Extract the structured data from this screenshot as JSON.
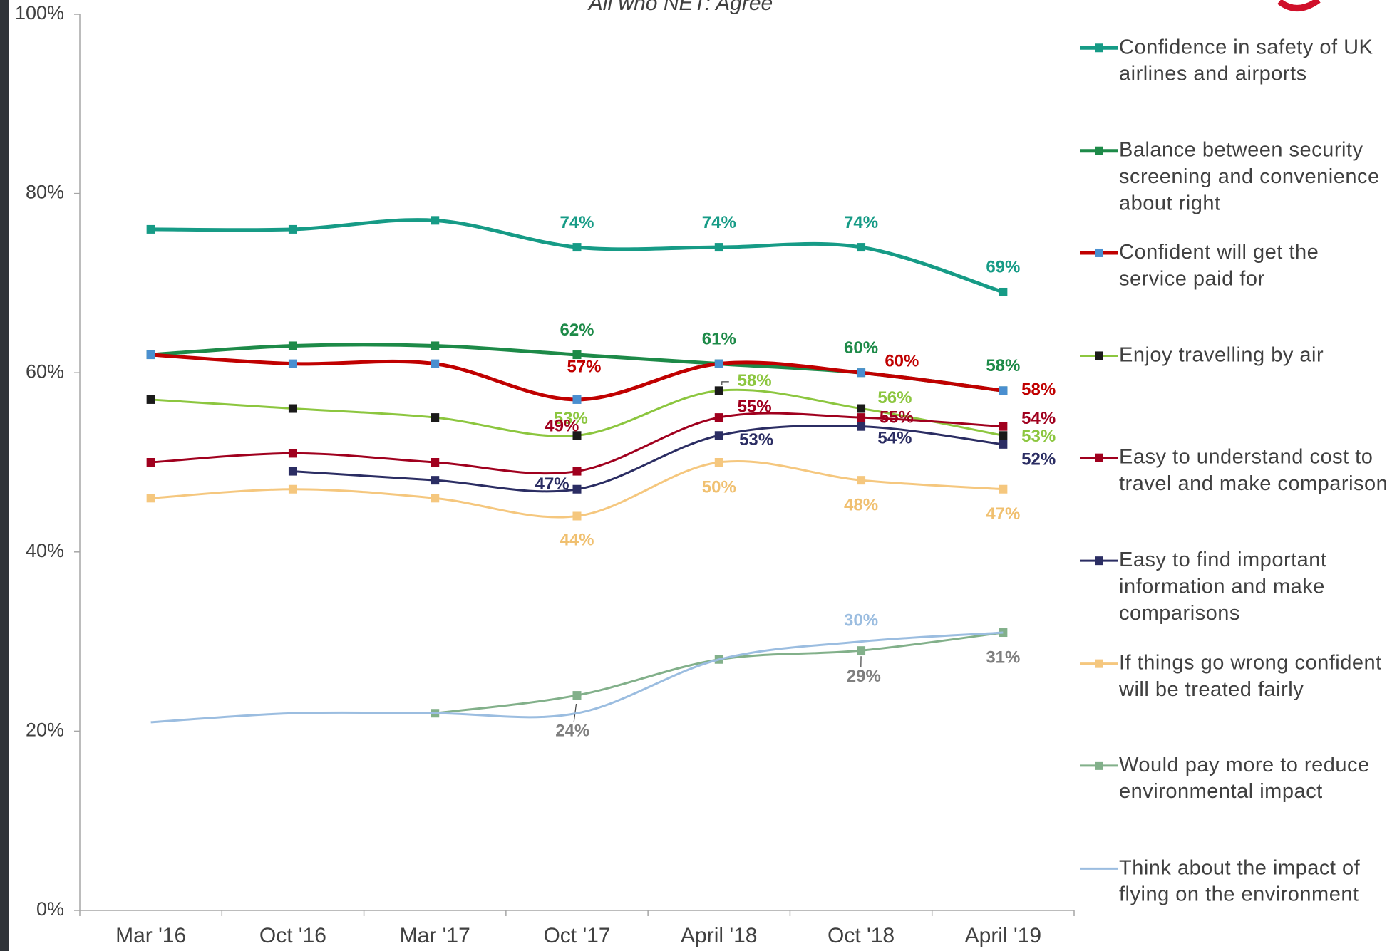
{
  "chart_data": {
    "type": "line",
    "subtitle": "All who NET: Agree",
    "categories": [
      "Mar '16",
      "Oct '16",
      "Mar '17",
      "Oct '17",
      "April '18",
      "Oct '18",
      "April '19"
    ],
    "ylim": [
      0,
      100
    ],
    "yticks": [
      {
        "value": 0,
        "label": "0%"
      },
      {
        "value": 20,
        "label": "20%"
      },
      {
        "value": 40,
        "label": "40%"
      },
      {
        "value": 60,
        "label": "60%"
      },
      {
        "value": 80,
        "label": "80%"
      },
      {
        "value": 100,
        "label": "100%"
      }
    ],
    "grid": false,
    "legend": "right",
    "series": [
      {
        "name": "Confidence in safety of UK airlines and airports",
        "color": "#169b86",
        "marker_color": "#169b86",
        "values": [
          76,
          76,
          77,
          74,
          74,
          74,
          69
        ],
        "value_labels": [
          null,
          null,
          null,
          "74%",
          "74%",
          "74%",
          "69%"
        ]
      },
      {
        "name": "Balance between security screening and convenience about right",
        "color": "#1d8a48",
        "marker_color": "#1d8a48",
        "values": [
          62,
          63,
          63,
          62,
          61,
          60,
          58
        ],
        "value_labels": [
          null,
          null,
          null,
          "62%",
          "61%",
          "60%",
          "58%"
        ]
      },
      {
        "name": "Confident will get the service paid for",
        "color": "#c00000",
        "marker_color": "#4a8fd0",
        "values": [
          62,
          61,
          61,
          57,
          61,
          60,
          58
        ],
        "value_labels": [
          null,
          null,
          null,
          "57%",
          null,
          "60%",
          "58%"
        ]
      },
      {
        "name": "Enjoy travelling by air",
        "color": "#8cc63f",
        "marker_color": "#1a1a1a",
        "values": [
          57,
          56,
          55,
          53,
          58,
          56,
          53
        ],
        "value_labels": [
          null,
          null,
          null,
          "53%",
          "58%",
          "56%",
          "53%"
        ]
      },
      {
        "name": "Easy to understand cost to travel and make comparison",
        "color": "#a0001e",
        "marker_color": "#a0001e",
        "values": [
          50,
          51,
          50,
          49,
          55,
          55,
          54
        ],
        "value_labels": [
          null,
          null,
          null,
          "49%",
          "55%",
          "55%",
          "54%"
        ]
      },
      {
        "name": "Easy to find important information and make comparisons",
        "color": "#2b2d63",
        "marker_color": "#2b2d63",
        "values": [
          null,
          49,
          48,
          47,
          53,
          54,
          52
        ],
        "value_labels": [
          null,
          null,
          null,
          "47%",
          "53%",
          "54%",
          "52%"
        ]
      },
      {
        "name": "If things go wrong confident will be treated fairly",
        "color": "#f5c77e",
        "marker_color": "#f5c77e",
        "values": [
          46,
          47,
          46,
          44,
          50,
          48,
          47
        ],
        "value_labels": [
          null,
          null,
          null,
          "44%",
          "50%",
          "48%",
          "47%"
        ]
      },
      {
        "name": "Would pay more to reduce environmental impact",
        "color": "#82b08a",
        "marker_color": "#82b08a",
        "values": [
          null,
          null,
          22,
          24,
          28,
          29,
          31
        ],
        "value_labels": [
          null,
          null,
          null,
          "24%",
          null,
          "29%",
          "31%"
        ]
      },
      {
        "name": "Think about the impact of flying on the environment",
        "color": "#9bbde0",
        "marker_color": "#9bbde0",
        "values": [
          21,
          22,
          22,
          22,
          28,
          30,
          31
        ],
        "value_labels": [
          null,
          null,
          null,
          null,
          null,
          "30%",
          null
        ]
      }
    ]
  }
}
